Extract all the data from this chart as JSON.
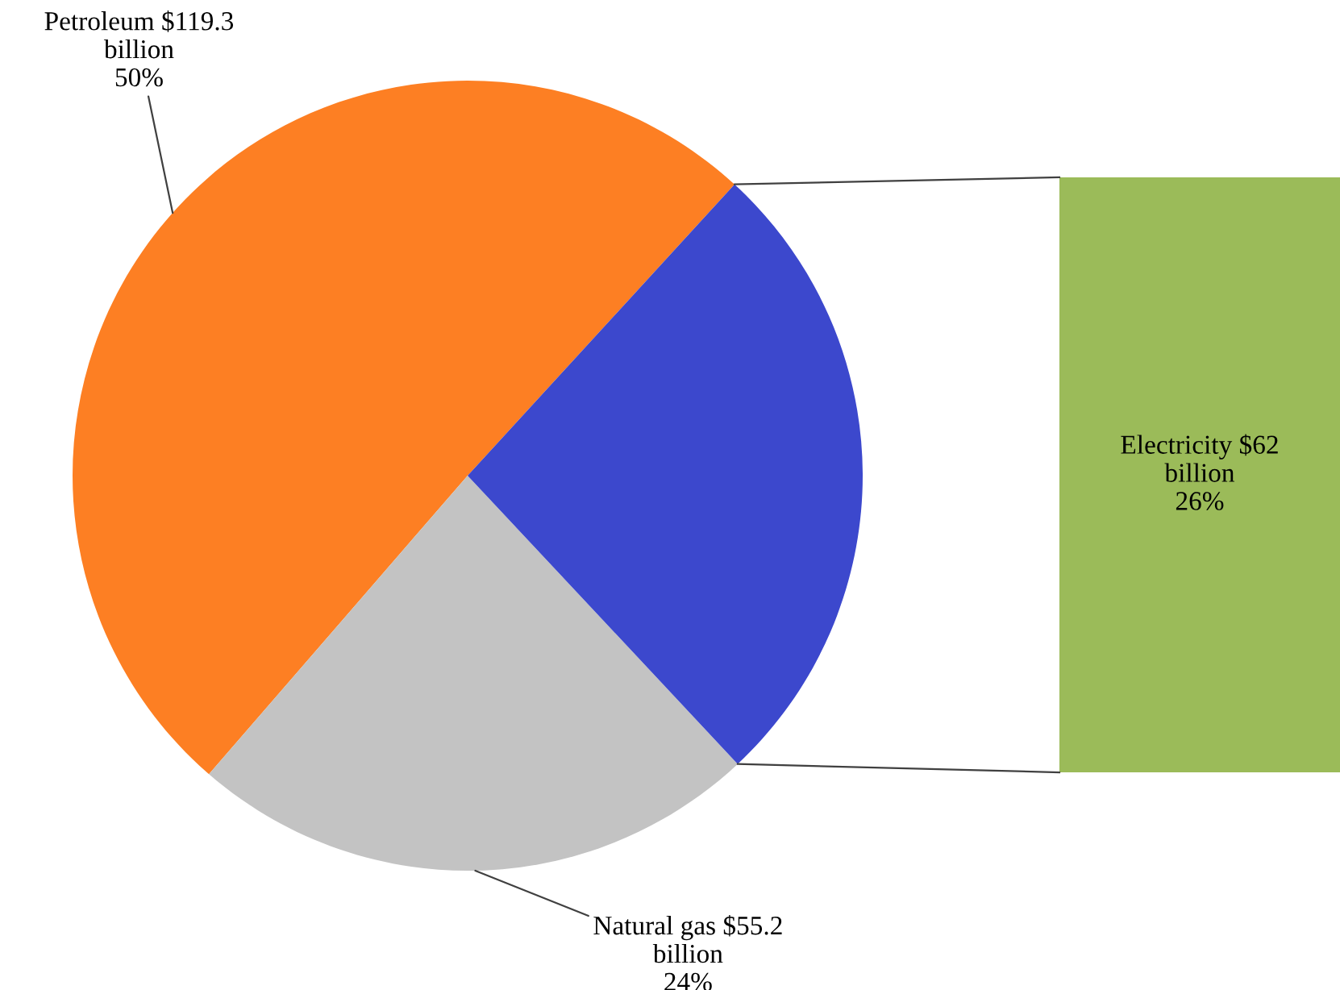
{
  "chart_data": {
    "type": "pie",
    "categories": [
      "Petroleum $119.3\nbillion\n50%",
      "Natural gas $55.2\nbillion\n24%",
      "Electricity $62\nbillion\n26%"
    ],
    "values": [
      119.3,
      55.2,
      62
    ],
    "colors": [
      "#fd7f23",
      "#c3c3c3",
      "#3c48cd"
    ]
  }
}
